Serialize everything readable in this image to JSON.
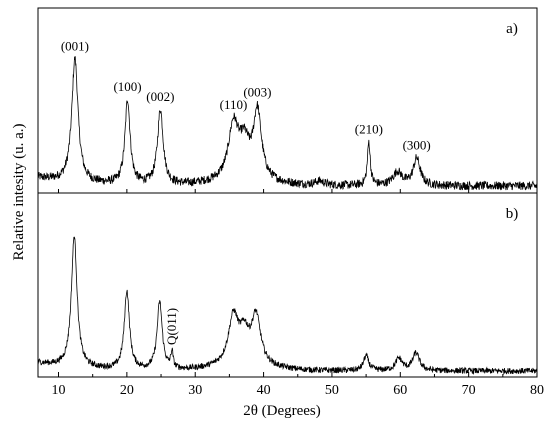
{
  "chart_data": {
    "type": "line",
    "xlabel": "2θ (Degrees)",
    "ylabel": "Relative intesity (u. a.)",
    "xlim": [
      7,
      80
    ],
    "xticks": [
      10,
      20,
      30,
      40,
      50,
      60,
      70,
      80
    ],
    "grid": false,
    "line_color": "#000000",
    "panels": [
      {
        "label": "a)",
        "ylim": [
          0,
          100
        ],
        "peaks": [
          {
            "x": 12.4,
            "y": 91,
            "w": 0.55
          },
          {
            "x": 20.1,
            "y": 62,
            "w": 0.45
          },
          {
            "x": 24.9,
            "y": 55,
            "w": 0.5
          },
          {
            "x": 35.6,
            "y": 40,
            "w": 0.9
          },
          {
            "x": 37.2,
            "y": 24,
            "w": 0.9
          },
          {
            "x": 39.1,
            "y": 50,
            "w": 0.7
          },
          {
            "x": 48.2,
            "y": 3,
            "w": 0.8
          },
          {
            "x": 55.4,
            "y": 32,
            "w": 0.25
          },
          {
            "x": 59.6,
            "y": 10,
            "w": 0.8
          },
          {
            "x": 62.4,
            "y": 20,
            "w": 0.6
          }
        ],
        "annotations": [
          {
            "text": "(001)",
            "x": 12.4
          },
          {
            "text": "(100)",
            "x": 20.1
          },
          {
            "text": "(002)",
            "x": 24.9
          },
          {
            "text": "(110)",
            "x": 35.6
          },
          {
            "text": "(003)",
            "x": 39.1
          },
          {
            "text": "(210)",
            "x": 55.4
          },
          {
            "text": "(300)",
            "x": 62.4
          }
        ]
      },
      {
        "label": "b)",
        "ylim": [
          0,
          100
        ],
        "peaks": [
          {
            "x": 12.3,
            "y": 97,
            "w": 0.5
          },
          {
            "x": 20.0,
            "y": 58,
            "w": 0.45
          },
          {
            "x": 24.8,
            "y": 50,
            "w": 0.45
          },
          {
            "x": 26.6,
            "y": 12,
            "w": 0.2
          },
          {
            "x": 35.6,
            "y": 36,
            "w": 0.9
          },
          {
            "x": 37.2,
            "y": 20,
            "w": 0.8
          },
          {
            "x": 38.9,
            "y": 36,
            "w": 0.8
          },
          {
            "x": 55.0,
            "y": 11,
            "w": 0.45
          },
          {
            "x": 59.8,
            "y": 9,
            "w": 0.6
          },
          {
            "x": 62.3,
            "y": 13,
            "w": 0.6
          }
        ],
        "annotations": [
          {
            "text": "Q(011)",
            "x": 26.6,
            "rotated": true
          }
        ]
      }
    ]
  }
}
